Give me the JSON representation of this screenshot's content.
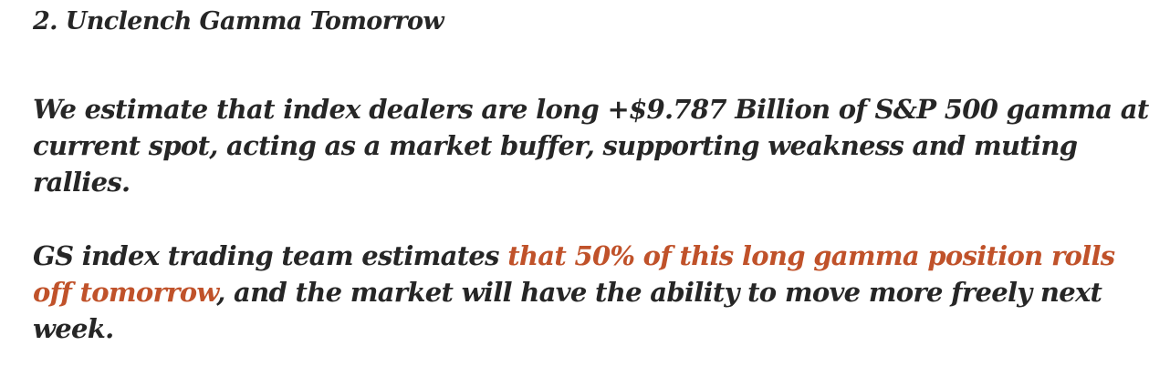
{
  "heading": "2. Unclench Gamma Tomorrow",
  "paragraph1": {
    "lines": [
      "We estimate that index dealers are long +$9.787 Billion of S&P 500 gamma at",
      "current spot, acting as a market buffer, supporting weakness and muting",
      "rallies."
    ]
  },
  "paragraph2": {
    "line1_plain": "GS index trading team estimates ",
    "line1_highlight": "that 50% of this long gamma position rolls",
    "line2_highlight": "off tomorrow",
    "line2_plain": ", and the market will have the ability to move more freely next",
    "line3_plain": "week."
  },
  "colors": {
    "text": "#262626",
    "highlight": "#c0522a",
    "background": "#ffffff"
  }
}
